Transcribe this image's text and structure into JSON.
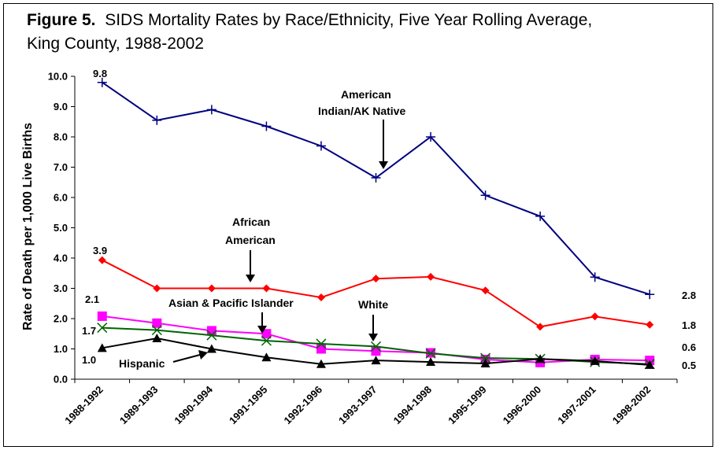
{
  "title": {
    "figure_label": "Figure 5.",
    "line1": "SIDS Mortality Rates by Race/Ethnicity, Five Year Rolling Average,",
    "line2": "King County, 1988-2002"
  },
  "chart_data": {
    "type": "line",
    "title": "Figure 5. SIDS Mortality Rates by Race/Ethnicity, Five Year Rolling Average, King County, 1988-2002",
    "xlabel": "",
    "ylabel": "Rate of Death per 1,000 Live Births",
    "ylim": [
      0,
      10
    ],
    "yticks": [
      "0.0",
      "1.0",
      "2.0",
      "3.0",
      "4.0",
      "5.0",
      "6.0",
      "7.0",
      "8.0",
      "9.0",
      "10.0"
    ],
    "grid": false,
    "categories": [
      "1988-1992",
      "1989-1993",
      "1990-1994",
      "1991-1995",
      "1992-1996",
      "1993-1997",
      "1994-1998",
      "1995-1999",
      "1996-2000",
      "1997-2001",
      "1998-2002"
    ],
    "series": [
      {
        "name": "American Indian/AK Native",
        "color": "#000080",
        "marker": "plus",
        "values": [
          9.8,
          8.55,
          8.9,
          8.35,
          7.7,
          6.65,
          8.0,
          6.07,
          5.38,
          3.37,
          2.8
        ]
      },
      {
        "name": "African American",
        "color": "#ff0000",
        "marker": "diamond",
        "values": [
          3.93,
          3.0,
          3.0,
          3.0,
          2.7,
          3.32,
          3.38,
          2.93,
          1.73,
          2.07,
          1.8
        ]
      },
      {
        "name": "Asian & Pacific Islander",
        "color": "#ff00ff",
        "marker": "square",
        "values": [
          2.08,
          1.85,
          1.6,
          1.5,
          1.0,
          0.93,
          0.87,
          0.65,
          0.55,
          0.65,
          0.62
        ]
      },
      {
        "name": "White",
        "color": "#006400",
        "marker": "x",
        "values": [
          1.7,
          1.62,
          1.45,
          1.27,
          1.17,
          1.08,
          0.85,
          0.7,
          0.67,
          0.57,
          0.5
        ]
      },
      {
        "name": "Hispanic",
        "color": "#000000",
        "marker": "triangle",
        "values": [
          1.03,
          1.35,
          1.0,
          0.72,
          0.5,
          0.62,
          0.57,
          0.52,
          0.67,
          0.6,
          0.47
        ]
      }
    ],
    "data_labels": [
      "9.8",
      "3.9",
      "2.1",
      "1.7",
      "1.0",
      "2.8",
      "1.8",
      "0.6",
      "0.5"
    ],
    "annotations": {
      "american_indian_line1": "American",
      "american_indian_line2": "Indian/AK Native",
      "african_american_line1": "African",
      "african_american_line2": "American",
      "asian_pacific": "Asian & Pacific Islander",
      "white": "White",
      "hispanic": "Hispanic"
    }
  }
}
